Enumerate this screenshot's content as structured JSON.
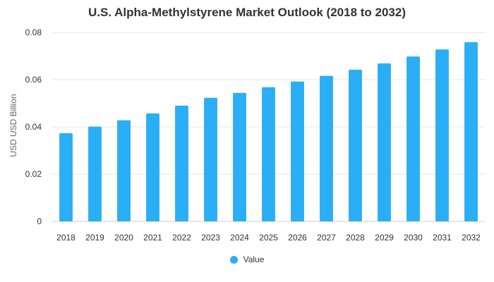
{
  "colors": {
    "bar": "#2AAEF5",
    "grid": "#E6E6E6",
    "text": "#333333"
  },
  "chart_data": {
    "type": "bar",
    "title": "U.S. Alpha-Methylstyrene Market Outlook (2018 to 2032)",
    "xlabel": "",
    "ylabel": "USD USD Billion",
    "categories": [
      "2018",
      "2019",
      "2020",
      "2021",
      "2022",
      "2023",
      "2024",
      "2025",
      "2026",
      "2027",
      "2028",
      "2029",
      "2030",
      "2031",
      "2032"
    ],
    "series": [
      {
        "name": "Value",
        "values": [
          0.0373,
          0.0401,
          0.0428,
          0.0457,
          0.049,
          0.0523,
          0.0544,
          0.0568,
          0.0592,
          0.0616,
          0.0642,
          0.0669,
          0.0698,
          0.0728,
          0.0759
        ]
      }
    ],
    "ylim": [
      0,
      0.08
    ],
    "yticks": [
      "0",
      "0.02",
      "0.04",
      "0.06",
      "0.08"
    ],
    "ytick_values": [
      0,
      0.02,
      0.04,
      0.06,
      0.08
    ],
    "grid": true,
    "legend_position": "bottom-center"
  }
}
